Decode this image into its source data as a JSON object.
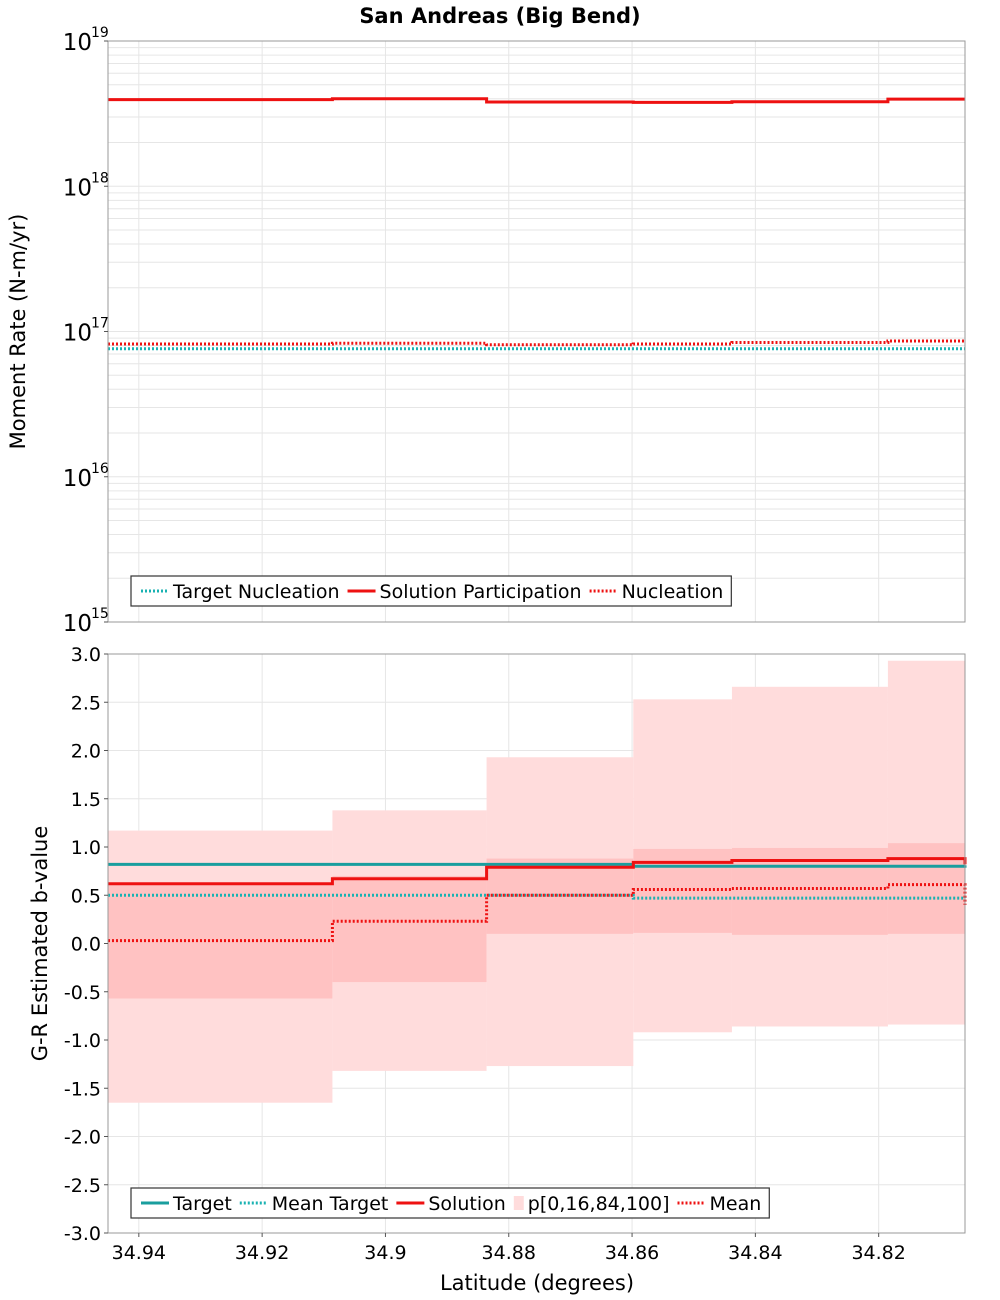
{
  "figure": {
    "title": "San Andreas (Big Bend)",
    "xlabel": "Latitude (degrees)"
  },
  "colors": {
    "target": "#1a9e9e",
    "mean_target": "#19b2b2",
    "solution": "#ee1111",
    "band_outer": "#ffdcdc",
    "band_inner": "#ffc2c2",
    "grid": "#e6e6e6",
    "frame": "#999999"
  },
  "chart_data": [
    {
      "type": "line",
      "ylabel": "Moment Rate (N-m/yr)",
      "yscale": "log",
      "ylim": [
        1000000000000000.0,
        1e+19
      ],
      "xlim": [
        34.945,
        34.806
      ],
      "x_reversed": true,
      "x_ticks": [
        "34.94",
        "34.92",
        "34.9",
        "34.88",
        "34.86",
        "34.84",
        "34.82"
      ],
      "y_ticks": [
        {
          "base": "10",
          "exp": "15"
        },
        {
          "base": "10",
          "exp": "16"
        },
        {
          "base": "10",
          "exp": "17"
        },
        {
          "base": "10",
          "exp": "18"
        },
        {
          "base": "10",
          "exp": "19"
        }
      ],
      "grid": true,
      "legend_position": "bottom-left",
      "bin_edges": [
        34.945,
        34.9086,
        34.8836,
        34.8598,
        34.8438,
        34.8185,
        34.806
      ],
      "series": [
        {
          "name": "Target Nucleation",
          "style": "dotted",
          "color": "#19b2b2",
          "values": [
            7.6e+16,
            7.6e+16,
            7.6e+16,
            7.6e+16,
            7.6e+16,
            7.6e+16
          ]
        },
        {
          "name": "Solution Participation",
          "style": "solid",
          "color": "#ee1111",
          "values": [
            3.95e+18,
            4e+18,
            3.8e+18,
            3.78e+18,
            3.82e+18,
            3.98e+18
          ]
        },
        {
          "name": "Nucleation",
          "style": "dotted",
          "color": "#ee1111",
          "values": [
            8.2e+16,
            8.3e+16,
            8.1e+16,
            8.2e+16,
            8.4e+16,
            8.6e+16
          ]
        }
      ]
    },
    {
      "type": "line",
      "ylabel": "G-R Estimated b-value",
      "yscale": "linear",
      "ylim": [
        -3.0,
        3.0
      ],
      "xlim": [
        34.945,
        34.806
      ],
      "x_reversed": true,
      "x_ticks": [
        "34.94",
        "34.92",
        "34.9",
        "34.88",
        "34.86",
        "34.84",
        "34.82"
      ],
      "y_ticks": [
        "3.0",
        "2.5",
        "2.0",
        "1.5",
        "1.0",
        "0.5",
        "0.0",
        "-0.5",
        "-1.0",
        "-1.5",
        "-2.0",
        "-2.5",
        "-3.0"
      ],
      "grid": true,
      "legend_position": "bottom-left",
      "bin_edges": [
        34.945,
        34.9086,
        34.8836,
        34.8598,
        34.8438,
        34.8185,
        34.806
      ],
      "bands": {
        "name": "p[0,16,84,100]",
        "p0": [
          -1.65,
          -1.32,
          -1.27,
          -0.92,
          -0.86,
          -0.84,
          -1.5
        ],
        "p16": [
          -0.57,
          -0.4,
          0.1,
          0.11,
          0.09,
          0.1,
          -0.36
        ],
        "p84": [
          0.62,
          0.7,
          0.88,
          0.98,
          0.99,
          1.04,
          0.99
        ],
        "p100": [
          1.17,
          1.38,
          1.93,
          2.53,
          2.66,
          2.93,
          2.93
        ]
      },
      "series": [
        {
          "name": "Target",
          "style": "solid",
          "color": "#1a9e9e",
          "values": [
            0.82,
            0.82,
            0.82,
            0.8,
            0.8,
            0.8,
            0.81
          ]
        },
        {
          "name": "Mean Target",
          "style": "dotted",
          "color": "#19b2b2",
          "values": [
            0.5,
            0.5,
            0.5,
            0.47,
            0.47,
            0.47,
            0.48
          ]
        },
        {
          "name": "Solution",
          "style": "solid",
          "color": "#ee1111",
          "values": [
            0.62,
            0.67,
            0.79,
            0.84,
            0.86,
            0.88,
            0.82
          ]
        },
        {
          "name": "Mean",
          "style": "dotted",
          "color": "#ee1111",
          "values": [
            0.03,
            0.23,
            0.5,
            0.56,
            0.57,
            0.61,
            0.4
          ]
        }
      ]
    }
  ]
}
